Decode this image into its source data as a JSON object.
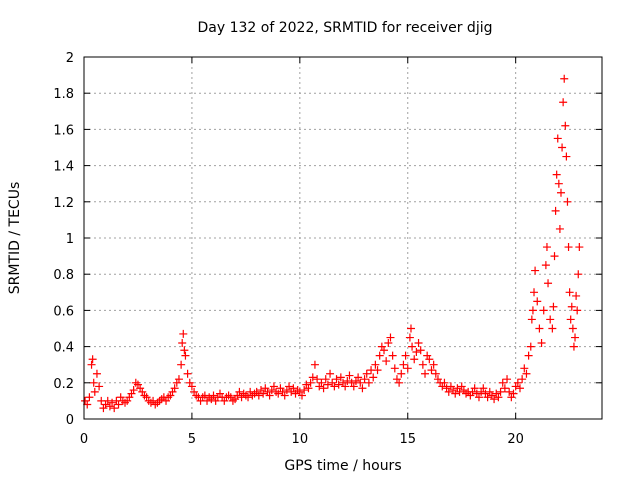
{
  "chart_data": {
    "type": "scatter",
    "title": "Day 132 of 2022, SRMTID for receiver djig",
    "xlabel": "GPS time / hours",
    "ylabel": "SRMTID / TECUs",
    "xlim": [
      0,
      24
    ],
    "ylim": [
      0,
      2
    ],
    "xticks": [
      0,
      5,
      10,
      15,
      20
    ],
    "xtick_labels": [
      "0",
      "5",
      "10",
      "15",
      "20"
    ],
    "yticks": [
      0,
      0.2,
      0.4,
      0.6,
      0.8,
      1,
      1.2,
      1.4,
      1.6,
      1.8,
      2
    ],
    "ytick_labels": [
      "0",
      "0.2",
      "0.4",
      "0.6",
      "0.8",
      "1",
      "1.2",
      "1.4",
      "1.6",
      "1.8",
      "2"
    ],
    "grid": true,
    "marker": "+",
    "color": "#ff0000",
    "series": [
      {
        "name": "SRMTID",
        "points": [
          [
            0.05,
            0.1
          ],
          [
            0.15,
            0.08
          ],
          [
            0.25,
            0.12
          ],
          [
            0.35,
            0.3
          ],
          [
            0.4,
            0.33
          ],
          [
            0.45,
            0.2
          ],
          [
            0.5,
            0.15
          ],
          [
            0.6,
            0.25
          ],
          [
            0.7,
            0.18
          ],
          [
            0.8,
            0.1
          ],
          [
            0.9,
            0.06
          ],
          [
            1.0,
            0.08
          ],
          [
            1.1,
            0.1
          ],
          [
            1.2,
            0.07
          ],
          [
            1.3,
            0.09
          ],
          [
            1.4,
            0.06
          ],
          [
            1.5,
            0.1
          ],
          [
            1.6,
            0.08
          ],
          [
            1.7,
            0.12
          ],
          [
            1.8,
            0.1
          ],
          [
            1.9,
            0.09
          ],
          [
            2.0,
            0.1
          ],
          [
            2.1,
            0.12
          ],
          [
            2.2,
            0.14
          ],
          [
            2.3,
            0.16
          ],
          [
            2.4,
            0.2
          ],
          [
            2.5,
            0.19
          ],
          [
            2.6,
            0.17
          ],
          [
            2.7,
            0.15
          ],
          [
            2.8,
            0.13
          ],
          [
            2.9,
            0.12
          ],
          [
            3.0,
            0.1
          ],
          [
            3.1,
            0.09
          ],
          [
            3.2,
            0.1
          ],
          [
            3.3,
            0.08
          ],
          [
            3.4,
            0.09
          ],
          [
            3.5,
            0.1
          ],
          [
            3.6,
            0.11
          ],
          [
            3.7,
            0.12
          ],
          [
            3.8,
            0.1
          ],
          [
            3.9,
            0.12
          ],
          [
            4.0,
            0.13
          ],
          [
            4.1,
            0.15
          ],
          [
            4.2,
            0.17
          ],
          [
            4.3,
            0.2
          ],
          [
            4.4,
            0.22
          ],
          [
            4.5,
            0.3
          ],
          [
            4.55,
            0.42
          ],
          [
            4.6,
            0.47
          ],
          [
            4.65,
            0.38
          ],
          [
            4.7,
            0.35
          ],
          [
            4.8,
            0.25
          ],
          [
            4.9,
            0.2
          ],
          [
            5.0,
            0.18
          ],
          [
            5.1,
            0.15
          ],
          [
            5.2,
            0.13
          ],
          [
            5.3,
            0.12
          ],
          [
            5.4,
            0.1
          ],
          [
            5.5,
            0.12
          ],
          [
            5.6,
            0.13
          ],
          [
            5.7,
            0.1
          ],
          [
            5.8,
            0.12
          ],
          [
            5.9,
            0.11
          ],
          [
            6.0,
            0.13
          ],
          [
            6.1,
            0.1
          ],
          [
            6.2,
            0.12
          ],
          [
            6.3,
            0.14
          ],
          [
            6.4,
            0.12
          ],
          [
            6.5,
            0.1
          ],
          [
            6.6,
            0.12
          ],
          [
            6.7,
            0.13
          ],
          [
            6.8,
            0.12
          ],
          [
            6.9,
            0.1
          ],
          [
            7.0,
            0.11
          ],
          [
            7.1,
            0.13
          ],
          [
            7.2,
            0.15
          ],
          [
            7.3,
            0.12
          ],
          [
            7.4,
            0.14
          ],
          [
            7.5,
            0.13
          ],
          [
            7.6,
            0.12
          ],
          [
            7.7,
            0.15
          ],
          [
            7.8,
            0.13
          ],
          [
            7.9,
            0.14
          ],
          [
            8.0,
            0.15
          ],
          [
            8.1,
            0.13
          ],
          [
            8.2,
            0.16
          ],
          [
            8.3,
            0.14
          ],
          [
            8.4,
            0.17
          ],
          [
            8.5,
            0.15
          ],
          [
            8.6,
            0.13
          ],
          [
            8.7,
            0.16
          ],
          [
            8.8,
            0.18
          ],
          [
            8.9,
            0.15
          ],
          [
            9.0,
            0.14
          ],
          [
            9.1,
            0.17
          ],
          [
            9.2,
            0.15
          ],
          [
            9.3,
            0.13
          ],
          [
            9.4,
            0.16
          ],
          [
            9.5,
            0.18
          ],
          [
            9.6,
            0.15
          ],
          [
            9.7,
            0.17
          ],
          [
            9.8,
            0.14
          ],
          [
            9.9,
            0.16
          ],
          [
            10.0,
            0.15
          ],
          [
            10.1,
            0.13
          ],
          [
            10.2,
            0.16
          ],
          [
            10.3,
            0.19
          ],
          [
            10.4,
            0.17
          ],
          [
            10.5,
            0.2
          ],
          [
            10.6,
            0.23
          ],
          [
            10.7,
            0.3
          ],
          [
            10.8,
            0.22
          ],
          [
            10.9,
            0.18
          ],
          [
            11.0,
            0.2
          ],
          [
            11.1,
            0.17
          ],
          [
            11.2,
            0.22
          ],
          [
            11.3,
            0.19
          ],
          [
            11.4,
            0.25
          ],
          [
            11.5,
            0.2
          ],
          [
            11.6,
            0.18
          ],
          [
            11.7,
            0.22
          ],
          [
            11.8,
            0.19
          ],
          [
            11.9,
            0.23
          ],
          [
            12.0,
            0.2
          ],
          [
            12.1,
            0.18
          ],
          [
            12.2,
            0.21
          ],
          [
            12.3,
            0.24
          ],
          [
            12.4,
            0.2
          ],
          [
            12.5,
            0.18
          ],
          [
            12.6,
            0.21
          ],
          [
            12.7,
            0.23
          ],
          [
            12.8,
            0.2
          ],
          [
            12.9,
            0.17
          ],
          [
            13.0,
            0.22
          ],
          [
            13.1,
            0.25
          ],
          [
            13.2,
            0.2
          ],
          [
            13.3,
            0.27
          ],
          [
            13.4,
            0.23
          ],
          [
            13.5,
            0.3
          ],
          [
            13.6,
            0.27
          ],
          [
            13.7,
            0.35
          ],
          [
            13.8,
            0.4
          ],
          [
            13.9,
            0.38
          ],
          [
            14.0,
            0.32
          ],
          [
            14.1,
            0.42
          ],
          [
            14.2,
            0.45
          ],
          [
            14.3,
            0.35
          ],
          [
            14.4,
            0.28
          ],
          [
            14.5,
            0.22
          ],
          [
            14.6,
            0.2
          ],
          [
            14.7,
            0.25
          ],
          [
            14.8,
            0.3
          ],
          [
            14.9,
            0.35
          ],
          [
            15.0,
            0.28
          ],
          [
            15.1,
            0.45
          ],
          [
            15.15,
            0.5
          ],
          [
            15.2,
            0.4
          ],
          [
            15.3,
            0.33
          ],
          [
            15.4,
            0.37
          ],
          [
            15.5,
            0.42
          ],
          [
            15.6,
            0.38
          ],
          [
            15.7,
            0.3
          ],
          [
            15.8,
            0.25
          ],
          [
            15.9,
            0.35
          ],
          [
            16.0,
            0.33
          ],
          [
            16.1,
            0.27
          ],
          [
            16.2,
            0.3
          ],
          [
            16.3,
            0.25
          ],
          [
            16.4,
            0.22
          ],
          [
            16.5,
            0.2
          ],
          [
            16.6,
            0.18
          ],
          [
            16.7,
            0.2
          ],
          [
            16.8,
            0.17
          ],
          [
            16.9,
            0.15
          ],
          [
            17.0,
            0.18
          ],
          [
            17.1,
            0.16
          ],
          [
            17.2,
            0.14
          ],
          [
            17.3,
            0.17
          ],
          [
            17.4,
            0.15
          ],
          [
            17.5,
            0.18
          ],
          [
            17.6,
            0.16
          ],
          [
            17.7,
            0.14
          ],
          [
            17.8,
            0.15
          ],
          [
            17.9,
            0.13
          ],
          [
            18.0,
            0.15
          ],
          [
            18.1,
            0.17
          ],
          [
            18.2,
            0.14
          ],
          [
            18.3,
            0.12
          ],
          [
            18.4,
            0.15
          ],
          [
            18.5,
            0.17
          ],
          [
            18.6,
            0.14
          ],
          [
            18.7,
            0.12
          ],
          [
            18.8,
            0.15
          ],
          [
            18.9,
            0.13
          ],
          [
            19.0,
            0.11
          ],
          [
            19.1,
            0.14
          ],
          [
            19.2,
            0.12
          ],
          [
            19.3,
            0.15
          ],
          [
            19.4,
            0.2
          ],
          [
            19.5,
            0.17
          ],
          [
            19.6,
            0.22
          ],
          [
            19.7,
            0.15
          ],
          [
            19.8,
            0.12
          ],
          [
            19.9,
            0.14
          ],
          [
            20.0,
            0.18
          ],
          [
            20.1,
            0.2
          ],
          [
            20.2,
            0.17
          ],
          [
            20.3,
            0.22
          ],
          [
            20.4,
            0.28
          ],
          [
            20.5,
            0.25
          ],
          [
            20.6,
            0.35
          ],
          [
            20.7,
            0.4
          ],
          [
            20.75,
            0.55
          ],
          [
            20.8,
            0.6
          ],
          [
            20.85,
            0.7
          ],
          [
            20.9,
            0.82
          ],
          [
            21.0,
            0.65
          ],
          [
            21.1,
            0.5
          ],
          [
            21.2,
            0.42
          ],
          [
            21.3,
            0.6
          ],
          [
            21.4,
            0.85
          ],
          [
            21.45,
            0.95
          ],
          [
            21.5,
            0.75
          ],
          [
            21.6,
            0.55
          ],
          [
            21.7,
            0.5
          ],
          [
            21.75,
            0.62
          ],
          [
            21.8,
            0.9
          ],
          [
            21.85,
            1.15
          ],
          [
            21.9,
            1.35
          ],
          [
            21.95,
            1.55
          ],
          [
            22.0,
            1.3
          ],
          [
            22.05,
            1.05
          ],
          [
            22.1,
            1.25
          ],
          [
            22.15,
            1.5
          ],
          [
            22.2,
            1.75
          ],
          [
            22.25,
            1.88
          ],
          [
            22.3,
            1.62
          ],
          [
            22.35,
            1.45
          ],
          [
            22.4,
            1.2
          ],
          [
            22.45,
            0.95
          ],
          [
            22.5,
            0.7
          ],
          [
            22.55,
            0.55
          ],
          [
            22.6,
            0.62
          ],
          [
            22.65,
            0.5
          ],
          [
            22.7,
            0.4
          ],
          [
            22.75,
            0.45
          ],
          [
            22.8,
            0.68
          ],
          [
            22.85,
            0.6
          ],
          [
            22.9,
            0.8
          ],
          [
            22.95,
            0.95
          ]
        ]
      }
    ]
  }
}
